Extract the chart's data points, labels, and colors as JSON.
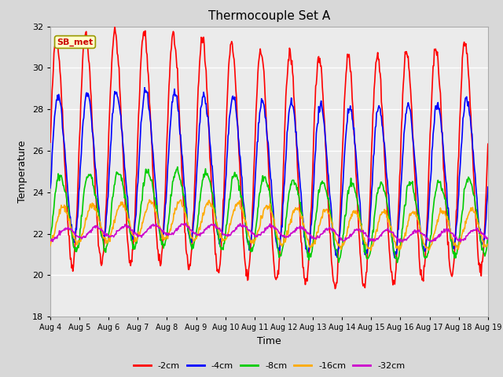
{
  "title": "Thermocouple Set A",
  "xlabel": "Time",
  "ylabel": "Temperature",
  "ylim": [
    18,
    32
  ],
  "yticks": [
    18,
    20,
    22,
    24,
    26,
    28,
    30,
    32
  ],
  "annotation_text": "SB_met",
  "annotation_color": "#cc0000",
  "annotation_bg": "#ffffcc",
  "annotation_edge": "#999900",
  "lines": {
    "-2cm": {
      "color": "#ff0000",
      "lw": 1.2
    },
    "-4cm": {
      "color": "#0000ff",
      "lw": 1.2
    },
    "-8cm": {
      "color": "#00cc00",
      "lw": 1.2
    },
    "-16cm": {
      "color": "#ffaa00",
      "lw": 1.2
    },
    "-32cm": {
      "color": "#cc00cc",
      "lw": 1.2
    }
  },
  "legend_order": [
    "-2cm",
    "-4cm",
    "-8cm",
    "-16cm",
    "-32cm"
  ],
  "x_tick_days": [
    4,
    5,
    6,
    7,
    8,
    9,
    10,
    11,
    12,
    13,
    14,
    15,
    16,
    17,
    18,
    19
  ],
  "background_color": "#d8d8d8",
  "plot_bg": "#ebebeb",
  "grid_color": "#ffffff",
  "n_points": 720
}
